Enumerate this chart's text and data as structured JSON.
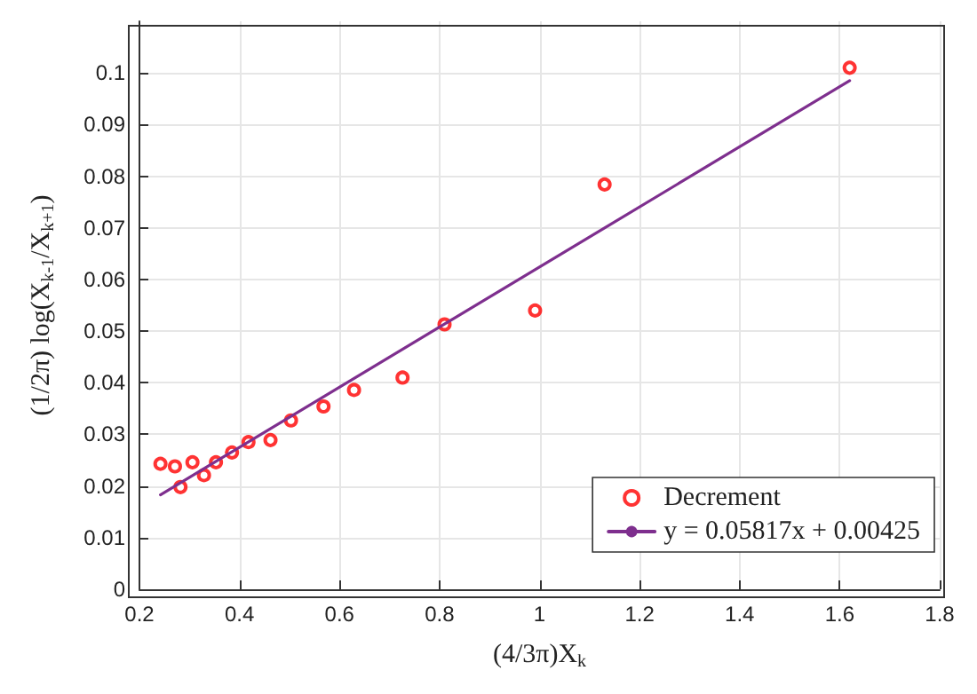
{
  "chart_data": {
    "type": "scatter",
    "xlabel": "(4/3π)X$_{k}$",
    "ylabel": "(1/2π) log(X$_{k-1}$/X$_{k+1}$)",
    "xlim": [
      0.2,
      1.8
    ],
    "xticks": [
      0.2,
      0.4,
      0.6,
      0.8,
      1,
      1.2,
      1.4,
      1.6,
      1.8
    ],
    "ylim": [
      0,
      0.11
    ],
    "yticks": [
      0,
      0.01,
      0.02,
      0.03,
      0.04,
      0.05,
      0.06,
      0.07,
      0.08,
      0.09,
      0.1
    ],
    "grid": true,
    "legend": "bottom right",
    "marker": "circle",
    "series": [
      {
        "name": "Decrement",
        "color": "#ff0000",
        "x": [
          0.242,
          0.271,
          0.282,
          0.306,
          0.329,
          0.353,
          0.385,
          0.418,
          0.462,
          0.503,
          0.568,
          0.629,
          0.726,
          0.81,
          0.991,
          1.13,
          1.62
        ],
        "values": [
          0.0243,
          0.0238,
          0.0198,
          0.0246,
          0.0221,
          0.0246,
          0.0265,
          0.0285,
          0.0289,
          0.0327,
          0.0354,
          0.0386,
          0.041,
          0.0513,
          0.054,
          0.0784,
          0.101
        ]
      },
      {
        "name": "y = 0.05817x + 0.00425",
        "type": "line",
        "color": "#7e2f8e",
        "marker": "none",
        "line_style": "solid",
        "x": [
          0.242,
          1.62
        ],
        "values": [
          0.0183,
          0.0985
        ]
      }
    ]
  }
}
